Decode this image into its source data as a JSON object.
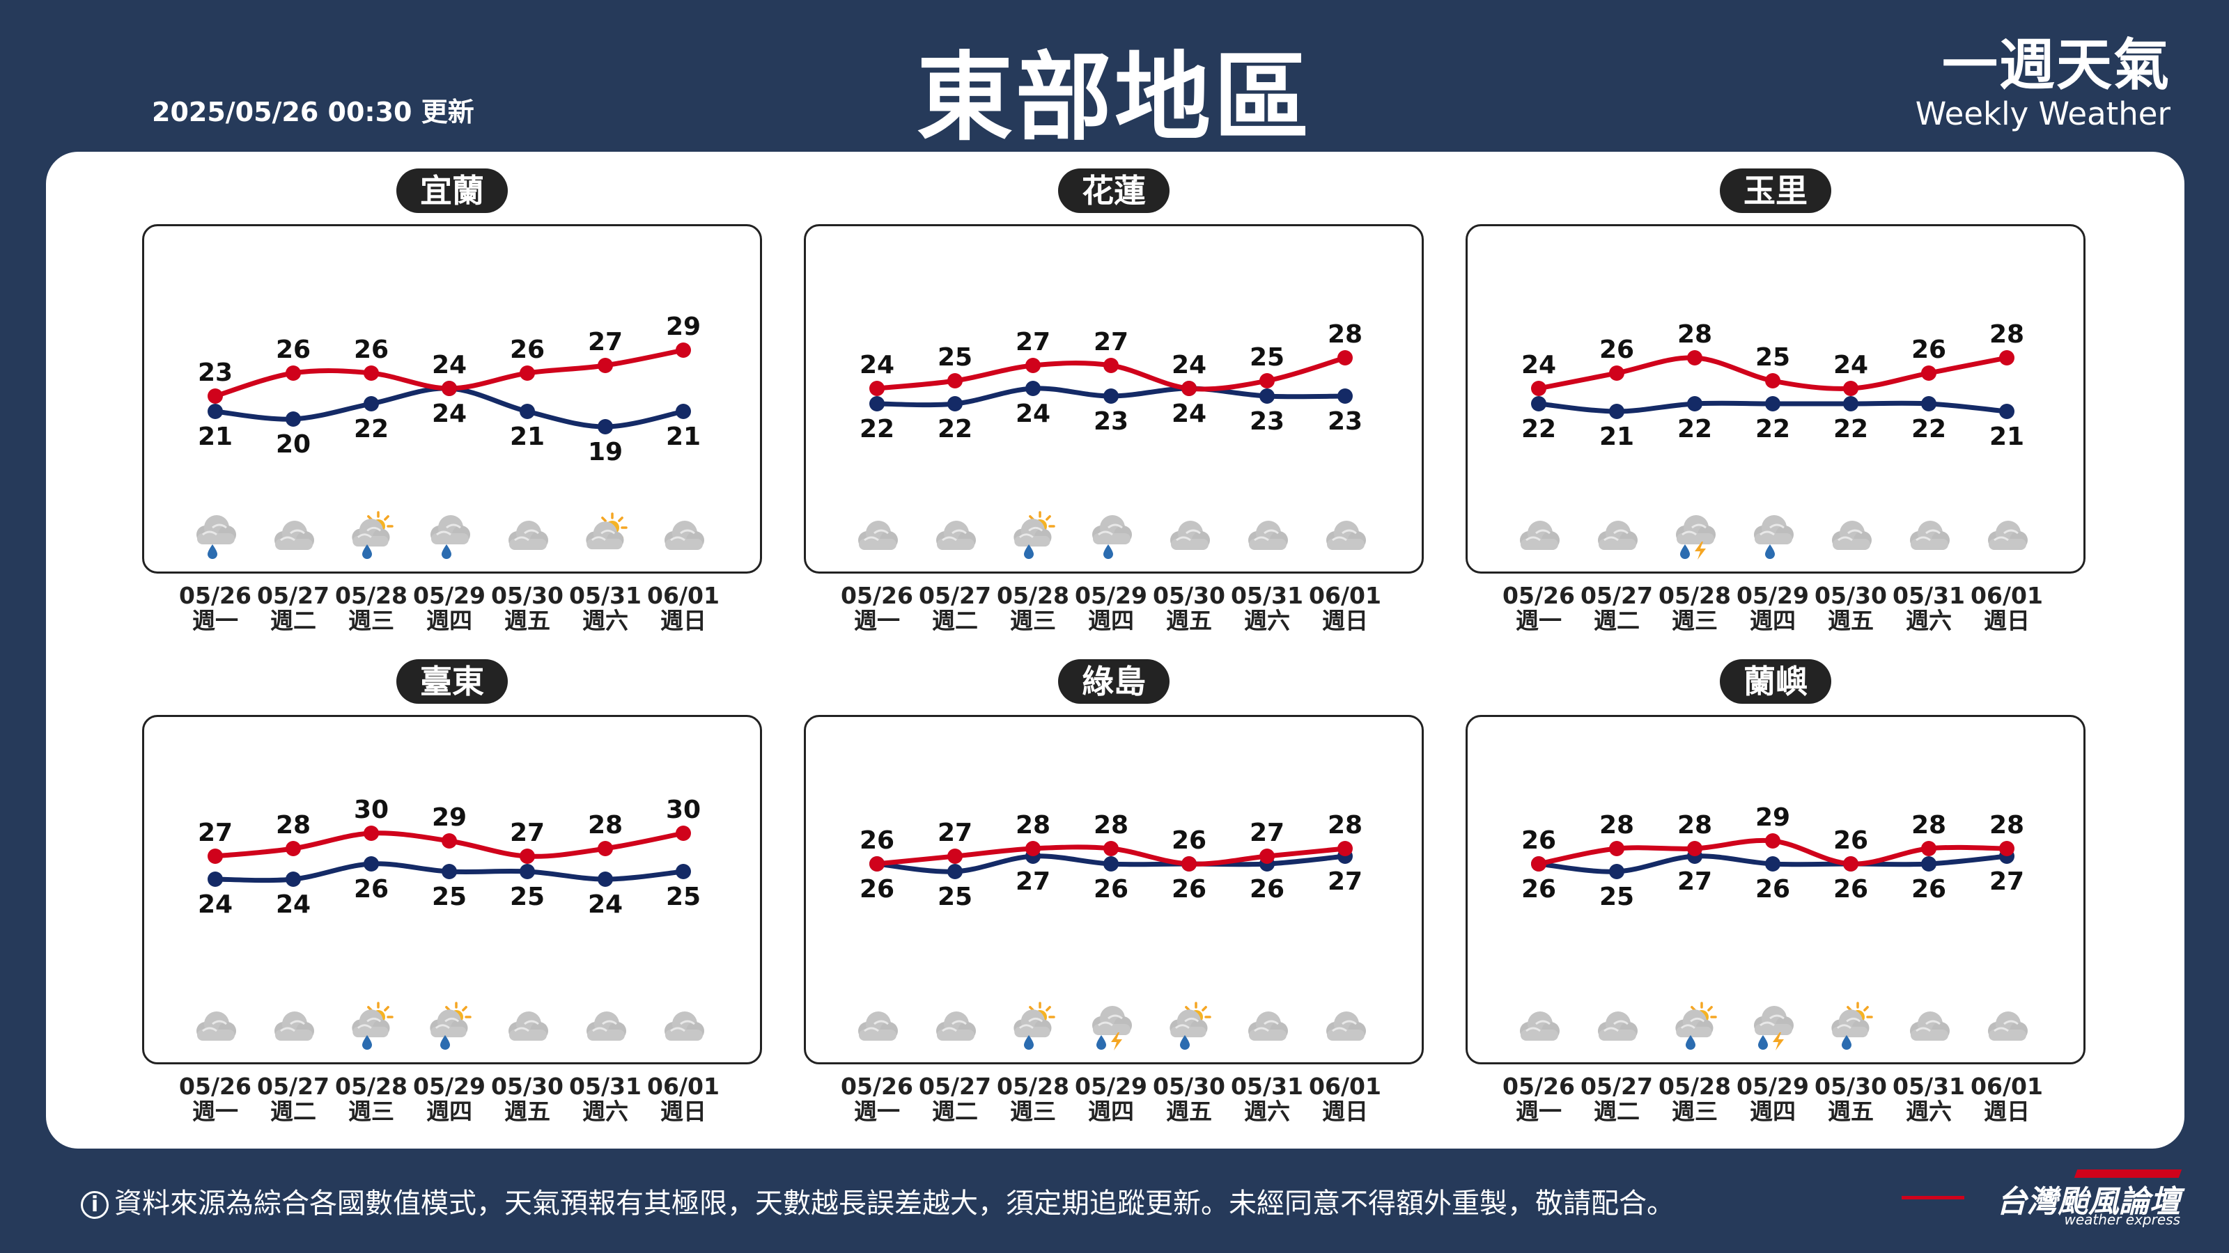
{
  "header": {
    "title": "東部地區",
    "updated": "2025/05/26 00:30 更新",
    "brand_zh": "一週天氣",
    "brand_en": "Weekly Weather"
  },
  "footer": {
    "info_symbol": "i",
    "note": "資料來源為綜合各國數值模式，天氣預報有其極限，天數越長誤差越大，須定期追蹤更新。未經同意不得額外重製，敬請配合。",
    "logo_zh": "台灣颱風論壇",
    "logo_en": "weather express"
  },
  "colors": {
    "background": "#263a5a",
    "high_line": "#d0021b",
    "low_line": "#142a66",
    "label_bg": "#232323"
  },
  "days": [
    {
      "date": "05/26",
      "weekday": "週一"
    },
    {
      "date": "05/27",
      "weekday": "週二"
    },
    {
      "date": "05/28",
      "weekday": "週三"
    },
    {
      "date": "05/29",
      "weekday": "週四"
    },
    {
      "date": "05/30",
      "weekday": "週五"
    },
    {
      "date": "05/31",
      "weekday": "週六"
    },
    {
      "date": "06/01",
      "weekday": "週日"
    }
  ],
  "chart_data": [
    {
      "type": "line",
      "name": "宜蘭",
      "categories": [
        "05/26",
        "05/27",
        "05/28",
        "05/29",
        "05/30",
        "05/31",
        "06/01"
      ],
      "series": [
        {
          "name": "high",
          "values": [
            23,
            26,
            26,
            24,
            26,
            27,
            29
          ]
        },
        {
          "name": "low",
          "values": [
            21,
            20,
            22,
            24,
            21,
            19,
            21
          ]
        }
      ],
      "icons": [
        "rain-icon",
        "cloudy-icon",
        "sun-cloud-rain-icon",
        "rain-icon",
        "cloudy-icon",
        "sun-cloud-icon",
        "cloudy-icon"
      ]
    },
    {
      "type": "line",
      "name": "花蓮",
      "categories": [
        "05/26",
        "05/27",
        "05/28",
        "05/29",
        "05/30",
        "05/31",
        "06/01"
      ],
      "series": [
        {
          "name": "high",
          "values": [
            24,
            25,
            27,
            27,
            24,
            25,
            28
          ]
        },
        {
          "name": "low",
          "values": [
            22,
            22,
            24,
            23,
            24,
            23,
            23
          ]
        }
      ],
      "icons": [
        "cloudy-icon",
        "cloudy-icon",
        "sun-cloud-rain-icon",
        "rain-icon",
        "cloudy-icon",
        "cloudy-icon",
        "cloudy-icon"
      ]
    },
    {
      "type": "line",
      "name": "玉里",
      "categories": [
        "05/26",
        "05/27",
        "05/28",
        "05/29",
        "05/30",
        "05/31",
        "06/01"
      ],
      "series": [
        {
          "name": "high",
          "values": [
            24,
            26,
            28,
            25,
            24,
            26,
            28
          ]
        },
        {
          "name": "low",
          "values": [
            22,
            21,
            22,
            22,
            22,
            22,
            21
          ]
        }
      ],
      "icons": [
        "cloudy-icon",
        "cloudy-icon",
        "thunder-rain-icon",
        "rain-icon",
        "cloudy-icon",
        "cloudy-icon",
        "cloudy-icon"
      ]
    },
    {
      "type": "line",
      "name": "臺東",
      "categories": [
        "05/26",
        "05/27",
        "05/28",
        "05/29",
        "05/30",
        "05/31",
        "06/01"
      ],
      "series": [
        {
          "name": "high",
          "values": [
            27,
            28,
            30,
            29,
            27,
            28,
            30
          ]
        },
        {
          "name": "low",
          "values": [
            24,
            24,
            26,
            25,
            25,
            24,
            25
          ]
        }
      ],
      "icons": [
        "cloudy-icon",
        "cloudy-icon",
        "sun-cloud-rain-icon",
        "sun-cloud-rain-icon",
        "cloudy-icon",
        "cloudy-icon",
        "cloudy-icon"
      ]
    },
    {
      "type": "line",
      "name": "綠島",
      "categories": [
        "05/26",
        "05/27",
        "05/28",
        "05/29",
        "05/30",
        "05/31",
        "06/01"
      ],
      "series": [
        {
          "name": "high",
          "values": [
            26,
            27,
            28,
            28,
            26,
            27,
            28
          ]
        },
        {
          "name": "low",
          "values": [
            26,
            25,
            27,
            26,
            26,
            26,
            27
          ]
        }
      ],
      "icons": [
        "cloudy-icon",
        "cloudy-icon",
        "sun-cloud-rain-icon",
        "thunder-rain-icon",
        "sun-cloud-rain-icon",
        "cloudy-icon",
        "cloudy-icon"
      ]
    },
    {
      "type": "line",
      "name": "蘭嶼",
      "categories": [
        "05/26",
        "05/27",
        "05/28",
        "05/29",
        "05/30",
        "05/31",
        "06/01"
      ],
      "series": [
        {
          "name": "high",
          "values": [
            26,
            28,
            28,
            29,
            26,
            28,
            28
          ]
        },
        {
          "name": "low",
          "values": [
            26,
            25,
            27,
            26,
            26,
            26,
            27
          ]
        }
      ],
      "icons": [
        "cloudy-icon",
        "cloudy-icon",
        "sun-cloud-rain-icon",
        "thunder-rain-icon",
        "sun-cloud-rain-icon",
        "cloudy-icon",
        "cloudy-icon"
      ]
    }
  ]
}
